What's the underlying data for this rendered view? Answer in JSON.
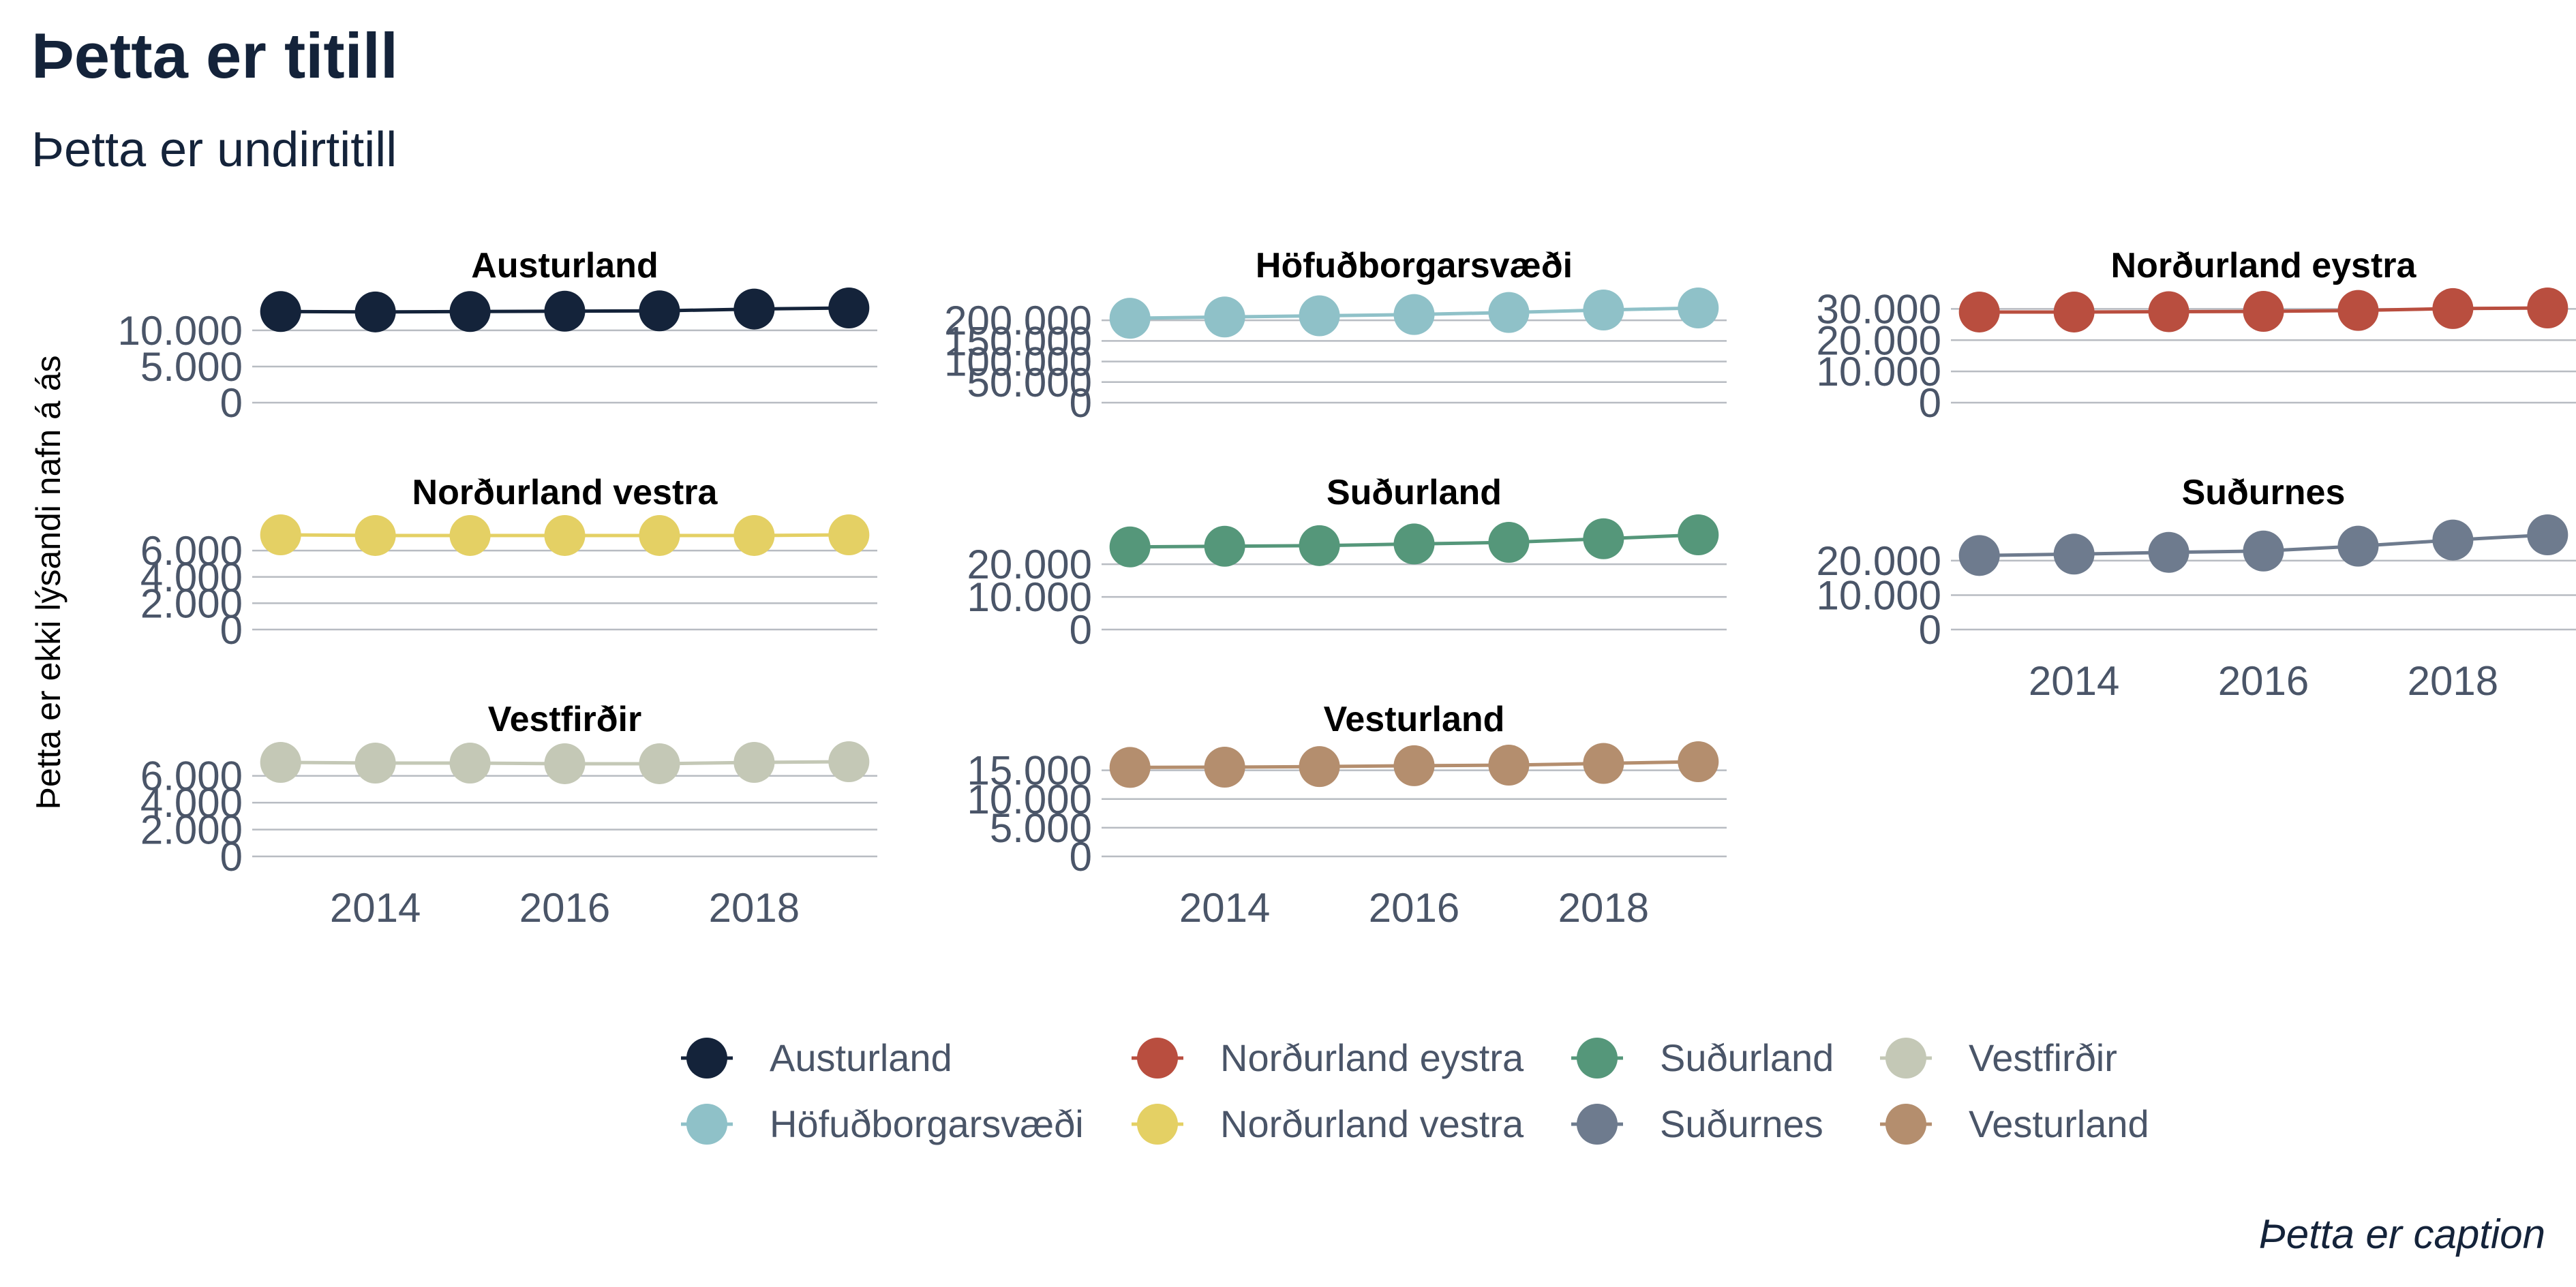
{
  "header": {
    "title": "Þetta er titill",
    "subtitle": "Þetta er undirtitill"
  },
  "caption": "Þetta er caption",
  "chart_data": {
    "type": "line",
    "title": "Þetta er titill",
    "subtitle": "Þetta er undirtitill",
    "ylabel": "Þetta er ekki lýsandi nafn á ás",
    "xlabel": "",
    "caption": "Þetta er caption",
    "x": [
      2013,
      2014,
      2015,
      2016,
      2017,
      2018,
      2019
    ],
    "x_ticks": [
      2014,
      2016,
      2018
    ],
    "x_tick_labels": [
      "2014",
      "2016",
      "2018"
    ],
    "grid": true,
    "legend_position": "bottom",
    "facets": [
      {
        "name": "Austurland",
        "color": "#14233a",
        "values": [
          12600,
          12550,
          12600,
          12650,
          12700,
          12950,
          13100
        ],
        "ylim": [
          0,
          13100
        ],
        "ticks": [
          0,
          5000,
          10000
        ],
        "tick_labels": [
          "0",
          "5.000",
          "10.000"
        ]
      },
      {
        "name": "Höfuðborgarsvæði",
        "color": "#8fc1c8",
        "values": [
          205000,
          208000,
          211000,
          214000,
          219000,
          225000,
          230000
        ],
        "ylim": [
          0,
          230000
        ],
        "ticks": [
          0,
          50000,
          100000,
          150000,
          200000
        ],
        "tick_labels": [
          "0",
          "50.000",
          "100.000",
          "150.000",
          "200.000"
        ]
      },
      {
        "name": "Norðurland eystra",
        "color": "#b94e3f",
        "values": [
          29000,
          29000,
          29100,
          29200,
          29500,
          30100,
          30300
        ],
        "ylim": [
          0,
          30300
        ],
        "ticks": [
          0,
          10000,
          20000,
          30000
        ],
        "tick_labels": [
          "0",
          "10.000",
          "20.000",
          "30.000"
        ]
      },
      {
        "name": "Norðurland vestra",
        "color": "#e4d064",
        "values": [
          7200,
          7150,
          7150,
          7150,
          7150,
          7150,
          7200
        ],
        "ylim": [
          0,
          7200
        ],
        "ticks": [
          0,
          2000,
          4000,
          6000
        ],
        "tick_labels": [
          "0",
          "2.000",
          "4.000",
          "6.000"
        ]
      },
      {
        "name": "Suðurland",
        "color": "#55977a",
        "values": [
          25300,
          25500,
          25700,
          26200,
          26700,
          27800,
          29000
        ],
        "ylim": [
          0,
          29000
        ],
        "ticks": [
          0,
          10000,
          20000
        ],
        "tick_labels": [
          "0",
          "10.000",
          "20.000"
        ]
      },
      {
        "name": "Suðurnes",
        "color": "#6e7b8e",
        "values": [
          21500,
          21900,
          22400,
          22800,
          24200,
          26000,
          27500
        ],
        "ylim": [
          0,
          27500
        ],
        "ticks": [
          0,
          10000,
          20000
        ],
        "tick_labels": [
          "0",
          "10.000",
          "20.000"
        ]
      },
      {
        "name": "Vestfirðir",
        "color": "#c4c8b6",
        "values": [
          7000,
          6950,
          6950,
          6900,
          6900,
          7000,
          7050
        ],
        "ylim": [
          0,
          7050
        ],
        "ticks": [
          0,
          2000,
          4000,
          6000
        ],
        "tick_labels": [
          "0",
          "2.000",
          "4.000",
          "6.000"
        ]
      },
      {
        "name": "Vesturland",
        "color": "#b48e6e",
        "values": [
          15500,
          15550,
          15650,
          15800,
          15900,
          16200,
          16500
        ],
        "ylim": [
          0,
          16500
        ],
        "ticks": [
          0,
          5000,
          10000,
          15000
        ],
        "tick_labels": [
          "0",
          "5.000",
          "10.000",
          "15.000"
        ]
      }
    ],
    "legend": [
      {
        "name": "Austurland",
        "color": "#14233a"
      },
      {
        "name": "Höfuðborgarsvæði",
        "color": "#8fc1c8"
      },
      {
        "name": "Norðurland eystra",
        "color": "#b94e3f"
      },
      {
        "name": "Norðurland vestra",
        "color": "#e4d064"
      },
      {
        "name": "Suðurland",
        "color": "#55977a"
      },
      {
        "name": "Suðurnes",
        "color": "#6e7b8e"
      },
      {
        "name": "Vestfirðir",
        "color": "#c4c8b6"
      },
      {
        "name": "Vesturland",
        "color": "#b48e6e"
      }
    ]
  }
}
